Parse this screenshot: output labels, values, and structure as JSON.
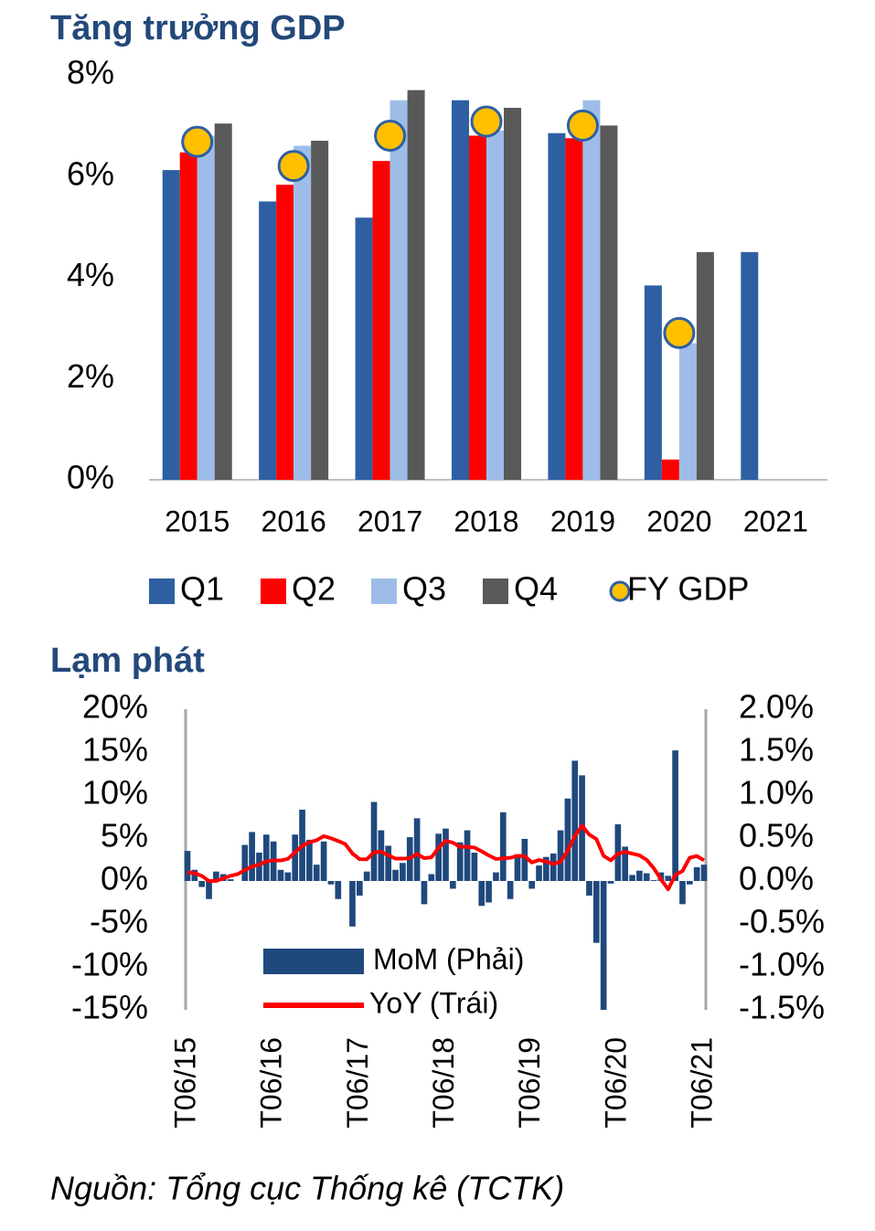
{
  "chart_data": [
    {
      "type": "bar",
      "title": "Tăng trưởng GDP",
      "categories": [
        "2015",
        "2016",
        "2017",
        "2018",
        "2019",
        "2020",
        "2021"
      ],
      "series": [
        {
          "name": "Q1",
          "type": "bar",
          "color": "#2e5fa3",
          "values": [
            6.12,
            5.5,
            5.18,
            7.5,
            6.85,
            3.84,
            4.5
          ]
        },
        {
          "name": "Q2",
          "type": "bar",
          "color": "#ff0000",
          "values": [
            6.47,
            5.83,
            6.3,
            6.8,
            6.75,
            0.4,
            null
          ]
        },
        {
          "name": "Q3",
          "type": "bar",
          "color": "#9dbde8",
          "values": [
            6.8,
            6.6,
            7.5,
            6.9,
            7.5,
            2.7,
            null
          ]
        },
        {
          "name": "Q4",
          "type": "bar",
          "color": "#595959",
          "values": [
            7.04,
            6.7,
            7.7,
            7.35,
            7.0,
            4.5,
            null
          ]
        },
        {
          "name": "FY GDP",
          "type": "scatter",
          "color": "#ffc000",
          "values": [
            6.68,
            6.2,
            6.8,
            7.08,
            7.0,
            2.9,
            null
          ]
        }
      ],
      "ylim": [
        0,
        8
      ],
      "yticks": [
        {
          "value": 0,
          "label": "0%"
        },
        {
          "value": 2,
          "label": "2%"
        },
        {
          "value": 4,
          "label": "4%"
        },
        {
          "value": 6,
          "label": "6%"
        },
        {
          "value": 8,
          "label": "8%"
        }
      ],
      "legend": "bottom"
    },
    {
      "type": "bar",
      "title": "Lạm phát",
      "categories": [
        "T06/15",
        null,
        null,
        null,
        null,
        null,
        null,
        null,
        null,
        null,
        null,
        null,
        "T06/16",
        null,
        null,
        null,
        null,
        null,
        null,
        null,
        null,
        null,
        null,
        null,
        "T06/17",
        null,
        null,
        null,
        null,
        null,
        null,
        null,
        null,
        null,
        null,
        null,
        "T06/18",
        null,
        null,
        null,
        null,
        null,
        null,
        null,
        null,
        null,
        null,
        null,
        "T06/19",
        null,
        null,
        null,
        null,
        null,
        null,
        null,
        null,
        null,
        null,
        null,
        "T06/20",
        null,
        null,
        null,
        null,
        null,
        null,
        null,
        null,
        null,
        null,
        null,
        "T06/21"
      ],
      "series": [
        {
          "name": "MoM (Phải)",
          "type": "bar",
          "axis": "y2",
          "color": "#1f497d",
          "values": [
            0.35,
            0.13,
            -0.07,
            -0.21,
            0.11,
            0.08,
            0.02,
            0.0,
            0.42,
            0.57,
            0.33,
            0.54,
            0.46,
            0.13,
            0.1,
            0.54,
            0.83,
            0.48,
            0.19,
            0.46,
            -0.04,
            -0.21,
            0.0,
            -0.53,
            -0.17,
            0.11,
            0.92,
            0.59,
            0.41,
            0.13,
            0.21,
            0.51,
            0.73,
            -0.27,
            0.08,
            0.55,
            0.61,
            -0.09,
            0.45,
            0.59,
            0.33,
            -0.29,
            -0.25,
            0.1,
            0.8,
            -0.21,
            0.31,
            0.49,
            -0.09,
            0.18,
            0.28,
            0.32,
            0.59,
            0.96,
            1.4,
            1.23,
            -0.17,
            -0.72,
            -1.54,
            -0.03,
            0.66,
            0.4,
            0.07,
            0.12,
            0.09,
            0.01,
            0.1,
            0.06,
            1.52,
            -0.27,
            -0.04,
            0.16,
            0.19
          ]
        },
        {
          "name": "YoY (Trái)",
          "type": "line",
          "color": "#ff0000",
          "values": [
            1.0,
            0.9,
            0.6,
            0.0,
            0.0,
            0.3,
            0.6,
            0.8,
            1.27,
            1.69,
            1.89,
            2.28,
            2.4,
            2.39,
            2.57,
            3.34,
            4.09,
            4.5,
            4.74,
            5.22,
            4.98,
            4.65,
            4.3,
            3.19,
            2.54,
            2.52,
            3.35,
            3.4,
            3.0,
            2.6,
            2.6,
            2.65,
            3.15,
            2.66,
            2.75,
            3.86,
            4.67,
            4.46,
            3.98,
            3.98,
            3.89,
            3.46,
            2.98,
            2.56,
            2.64,
            2.7,
            2.93,
            2.88,
            2.16,
            2.44,
            2.26,
            1.98,
            2.24,
            3.52,
            5.23,
            6.43,
            5.4,
            4.87,
            2.93,
            2.4,
            3.17,
            3.39,
            3.18,
            2.98,
            2.47,
            1.48,
            0.19,
            -0.97,
            0.7,
            1.16,
            2.7,
            2.9,
            2.41
          ]
        }
      ],
      "ylim": [
        -15,
        20
      ],
      "yticks": [
        {
          "value": -15,
          "label": "-15%"
        },
        {
          "value": -10,
          "label": "-10%"
        },
        {
          "value": -5,
          "label": "-5%"
        },
        {
          "value": 0,
          "label": "0%"
        },
        {
          "value": 5,
          "label": "5%"
        },
        {
          "value": 10,
          "label": "10%"
        },
        {
          "value": 15,
          "label": "15%"
        },
        {
          "value": 20,
          "label": "20%"
        }
      ],
      "y2lim": [
        -1.5,
        2.0
      ],
      "y2ticks": [
        {
          "value": -1.5,
          "label": "-1.5%"
        },
        {
          "value": -1.0,
          "label": "-1.0%"
        },
        {
          "value": -0.5,
          "label": "-0.5%"
        },
        {
          "value": 0,
          "label": "0.0%"
        },
        {
          "value": 0.5,
          "label": "0.5%"
        },
        {
          "value": 1.0,
          "label": "1.0%"
        },
        {
          "value": 1.5,
          "label": "1.5%"
        },
        {
          "value": 2.0,
          "label": "2.0%"
        }
      ],
      "legend": "lower center"
    }
  ],
  "source": "Nguồn: Tổng cục Thống kê (TCTK)"
}
